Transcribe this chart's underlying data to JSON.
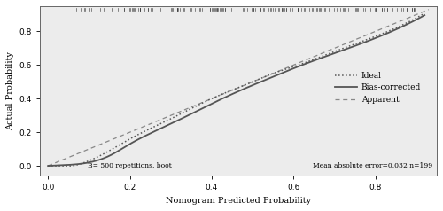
{
  "xlabel": "Nomogram Predicted Probability",
  "ylabel": "Actual Probability",
  "xlim": [
    -0.02,
    0.95
  ],
  "ylim": [
    -0.06,
    0.95
  ],
  "xticks": [
    0.0,
    0.2,
    0.4,
    0.6,
    0.8
  ],
  "yticks": [
    0.0,
    0.2,
    0.4,
    0.6,
    0.8
  ],
  "annotation_left": "B= 500 repetitions, boot",
  "annotation_right": "Mean absolute error=0.032 n=199",
  "legend_labels": [
    "Apparent",
    "Bias-corrected",
    "Ideal"
  ],
  "line_color": "#555555",
  "ideal_color": "#888888",
  "rug_color": "#333333",
  "font_family": "serif",
  "bg_color": "#ececec"
}
